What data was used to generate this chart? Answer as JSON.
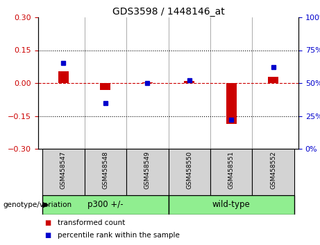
{
  "title": "GDS3598 / 1448146_at",
  "samples": [
    "GSM458547",
    "GSM458548",
    "GSM458549",
    "GSM458550",
    "GSM458551",
    "GSM458552"
  ],
  "red_values": [
    0.055,
    -0.03,
    0.002,
    0.008,
    -0.185,
    0.028
  ],
  "blue_values": [
    65,
    35,
    50,
    52,
    22,
    62
  ],
  "ylim_left": [
    -0.3,
    0.3
  ],
  "ylim_right": [
    0,
    100
  ],
  "yticks_left": [
    -0.3,
    -0.15,
    0,
    0.15,
    0.3
  ],
  "yticks_right": [
    0,
    25,
    50,
    75,
    100
  ],
  "hlines": [
    0.15,
    -0.15
  ],
  "group_bg_color": "#90EE90",
  "tick_bg_color": "#d3d3d3",
  "red_color": "#cc0000",
  "blue_color": "#0000cc",
  "zero_line_color": "#cc0000",
  "dotted_line_color": "#000000",
  "legend_red": "transformed count",
  "legend_blue": "percentile rank within the sample",
  "genotype_label": "genotype/variation",
  "group1_label": "p300 +/-",
  "group2_label": "wild-type"
}
